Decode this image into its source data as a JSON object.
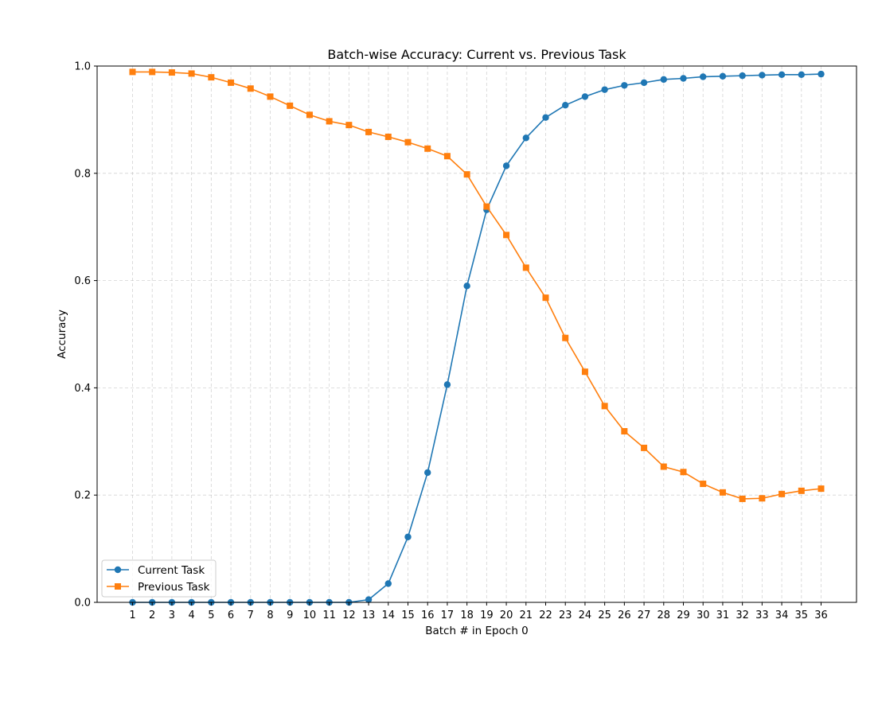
{
  "chart_data": {
    "type": "line",
    "title": "Batch-wise Accuracy: Current vs. Previous Task",
    "xlabel": "Batch # in Epoch 0",
    "ylabel": "Accuracy",
    "x": [
      1,
      2,
      3,
      4,
      5,
      6,
      7,
      8,
      9,
      10,
      11,
      12,
      13,
      14,
      15,
      16,
      17,
      18,
      19,
      20,
      21,
      22,
      23,
      24,
      25,
      26,
      27,
      28,
      29,
      30,
      31,
      32,
      33,
      34,
      35,
      36
    ],
    "x_tick_labels": [
      "1",
      "2",
      "3",
      "4",
      "5",
      "6",
      "7",
      "8",
      "9",
      "10",
      "11",
      "12",
      "13",
      "14",
      "15",
      "16",
      "17",
      "18",
      "19",
      "20",
      "21",
      "22",
      "23",
      "24",
      "25",
      "26",
      "27",
      "28",
      "29",
      "30",
      "31",
      "32",
      "33",
      "34",
      "35",
      "36"
    ],
    "xlim": [
      -0.8,
      37.8
    ],
    "ylim": [
      0.0,
      1.0
    ],
    "y_ticks": [
      0.0,
      0.2,
      0.4,
      0.6,
      0.8,
      1.0
    ],
    "y_tick_labels": [
      "0.0",
      "0.2",
      "0.4",
      "0.6",
      "0.8",
      "1.0"
    ],
    "grid": true,
    "legend_position": "lower-left",
    "series": [
      {
        "name": "Current Task",
        "color": "#1f77b4",
        "marker": "circle",
        "values": [
          0.0,
          0.0,
          0.0,
          0.0,
          0.0,
          0.0,
          0.0,
          0.0,
          0.0,
          0.0,
          0.0,
          0.0,
          0.005,
          0.035,
          0.122,
          0.242,
          0.406,
          0.59,
          0.732,
          0.814,
          0.866,
          0.904,
          0.927,
          0.943,
          0.956,
          0.964,
          0.969,
          0.975,
          0.977,
          0.98,
          0.981,
          0.982,
          0.983,
          0.984,
          0.984,
          0.985
        ]
      },
      {
        "name": "Previous Task",
        "color": "#ff7f0e",
        "marker": "square",
        "values": [
          0.989,
          0.989,
          0.988,
          0.986,
          0.979,
          0.969,
          0.958,
          0.943,
          0.926,
          0.909,
          0.897,
          0.89,
          0.877,
          0.868,
          0.858,
          0.846,
          0.832,
          0.798,
          0.738,
          0.685,
          0.624,
          0.568,
          0.493,
          0.43,
          0.366,
          0.319,
          0.288,
          0.253,
          0.243,
          0.221,
          0.205,
          0.193,
          0.194,
          0.202,
          0.208,
          0.212
        ]
      }
    ]
  }
}
